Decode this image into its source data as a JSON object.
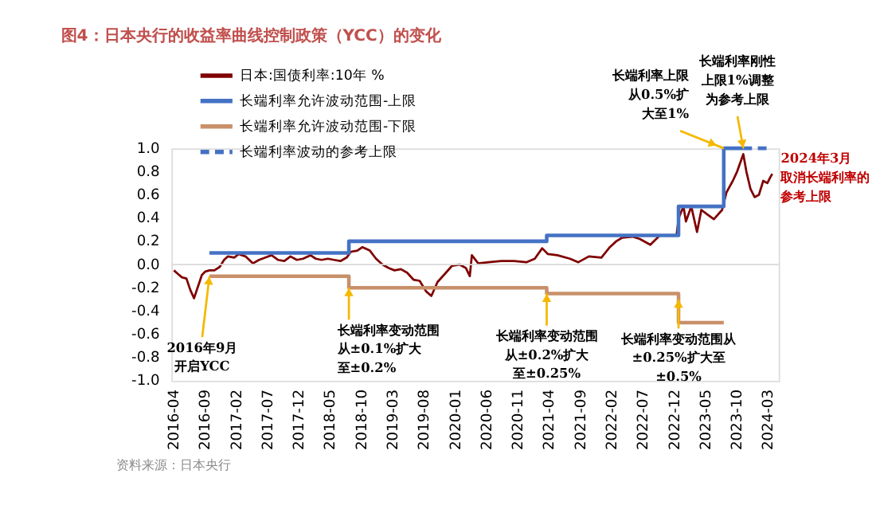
{
  "chart_data": {
    "type": "line",
    "title": "图4：日本央行的收益率曲线控制政策（YCC）的变化",
    "xlim": [
      "2016-03-20",
      "2024-04-20"
    ],
    "xticks": [
      "2016-04",
      "2016-09",
      "2017-02",
      "2017-07",
      "2017-12",
      "2018-05",
      "2018-10",
      "2019-03",
      "2019-08",
      "2020-01",
      "2020-06",
      "2020-11",
      "2021-04",
      "2021-09",
      "2022-02",
      "2022-07",
      "2022-12",
      "2023-05",
      "2023-10",
      "2024-03"
    ],
    "ylim": [
      -1.0,
      1.0
    ],
    "yticks": [
      {
        "value": -1.0,
        "label": "-1.0"
      },
      {
        "value": -0.8,
        "label": "-0.8"
      },
      {
        "value": -0.6,
        "label": "-0.6"
      },
      {
        "value": -0.4,
        "label": "-0.4"
      },
      {
        "value": -0.2,
        "label": "-0.2"
      },
      {
        "value": 0,
        "label": "0.0"
      },
      {
        "value": 0.2,
        "label": "0.2"
      },
      {
        "value": 0.4,
        "label": "0.4"
      },
      {
        "value": 0.6,
        "label": "0.6"
      },
      {
        "value": 0.8,
        "label": "0.8"
      },
      {
        "value": 1.0,
        "label": "1.0"
      }
    ],
    "grid": false,
    "legend": "top left",
    "line_style": "solid",
    "marker": "none",
    "series": [
      {
        "name": "日本:国债利率:10年 %",
        "color": "#7f0000",
        "x": [
          "2016-04-01",
          "2016-04-20",
          "2016-05-10",
          "2016-06-01",
          "2016-06-20",
          "2016-07-08",
          "2016-07-27",
          "2016-08-15",
          "2016-09-01",
          "2016-09-21",
          "2016-10-15",
          "2016-11-10",
          "2016-12-01",
          "2016-12-20",
          "2017-01-20",
          "2017-02-10",
          "2017-03-15",
          "2017-04-20",
          "2017-05-20",
          "2017-06-20",
          "2017-07-20",
          "2017-08-20",
          "2017-09-20",
          "2017-10-20",
          "2017-11-20",
          "2017-12-20",
          "2018-01-25",
          "2018-02-20",
          "2018-03-20",
          "2018-04-20",
          "2018-05-20",
          "2018-06-20",
          "2018-07-20",
          "2018-08-10",
          "2018-09-10",
          "2018-10-05",
          "2018-11-10",
          "2018-12-10",
          "2019-01-10",
          "2019-02-10",
          "2019-03-10",
          "2019-04-10",
          "2019-05-10",
          "2019-06-10",
          "2019-07-10",
          "2019-08-10",
          "2019-09-05",
          "2019-10-05",
          "2019-11-10",
          "2019-12-15",
          "2020-01-20",
          "2020-02-20",
          "2020-03-10",
          "2020-03-20",
          "2020-04-20",
          "2020-06-10",
          "2020-08-10",
          "2020-10-10",
          "2020-12-10",
          "2021-01-20",
          "2021-02-25",
          "2021-03-25",
          "2021-05-10",
          "2021-07-10",
          "2021-08-20",
          "2021-10-10",
          "2021-12-10",
          "2022-01-20",
          "2022-02-20",
          "2022-03-20",
          "2022-05-10",
          "2022-06-15",
          "2022-08-05",
          "2022-09-20",
          "2022-11-10",
          "2022-12-10",
          "2022-12-21",
          "2023-01-13",
          "2023-01-25",
          "2023-02-20",
          "2023-03-20",
          "2023-04-10",
          "2023-05-10",
          "2023-06-10",
          "2023-07-20",
          "2023-08-10",
          "2023-09-10",
          "2023-10-01",
          "2023-10-31",
          "2023-11-15",
          "2023-12-05",
          "2023-12-25",
          "2024-01-15",
          "2024-02-05",
          "2024-02-25",
          "2024-03-10",
          "2024-03-20"
        ],
        "values": [
          -0.05,
          -0.08,
          -0.11,
          -0.12,
          -0.22,
          -0.29,
          -0.19,
          -0.09,
          -0.06,
          -0.05,
          -0.05,
          -0.02,
          0.04,
          0.07,
          0.06,
          0.09,
          0.07,
          0.01,
          0.04,
          0.06,
          0.08,
          0.04,
          0.03,
          0.07,
          0.04,
          0.05,
          0.08,
          0.05,
          0.04,
          0.05,
          0.04,
          0.03,
          0.06,
          0.11,
          0.12,
          0.15,
          0.12,
          0.05,
          0.0,
          -0.03,
          -0.05,
          -0.04,
          -0.07,
          -0.13,
          -0.14,
          -0.23,
          -0.27,
          -0.15,
          -0.08,
          -0.01,
          0.0,
          -0.03,
          -0.1,
          0.08,
          0.01,
          0.02,
          0.03,
          0.03,
          0.02,
          0.05,
          0.14,
          0.09,
          0.08,
          0.05,
          0.02,
          0.07,
          0.06,
          0.15,
          0.2,
          0.23,
          0.24,
          0.22,
          0.17,
          0.25,
          0.25,
          0.25,
          0.4,
          0.5,
          0.37,
          0.5,
          0.28,
          0.47,
          0.43,
          0.39,
          0.47,
          0.62,
          0.72,
          0.8,
          0.95,
          0.8,
          0.65,
          0.58,
          0.6,
          0.72,
          0.7,
          0.75,
          0.78
        ]
      },
      {
        "name": "长端利率允许波动范围-上限",
        "color": "#4472c4",
        "type": "step",
        "x": [
          "2016-09-21",
          "2018-07-31",
          "2021-03-19",
          "2022-12-20",
          "2023-07-28",
          "2023-10-31"
        ],
        "values": [
          0.1,
          0.2,
          0.25,
          0.5,
          1.0,
          1.0
        ]
      },
      {
        "name": "长端利率允许波动范围-下限",
        "color": "#c8906a",
        "type": "step",
        "x": [
          "2016-09-21",
          "2018-07-31",
          "2021-03-19",
          "2022-12-20",
          "2023-07-28"
        ],
        "values": [
          -0.1,
          -0.2,
          -0.25,
          -0.5,
          -0.5
        ]
      },
      {
        "name": "长端利率波动的参考上限",
        "color": "#4472c4",
        "line_style": "dashed",
        "x": [
          "2023-10-31",
          "2024-03-19"
        ],
        "values": [
          1.0,
          1.0
        ]
      }
    ],
    "ref_lines": [
      {
        "axis": "y",
        "value": 0,
        "color": "#d9d9d9"
      }
    ],
    "annotations": [
      {
        "text": "2016年9月开启YCC",
        "x": "2016-09-21",
        "y": -0.1
      },
      {
        "text": "长端利率变动范围从±0.1%扩大至±0.2%",
        "x": "2018-07-31",
        "y": -0.2
      },
      {
        "text": "长端利率变动范围从±0.2%扩大至±0.25%",
        "x": "2021-03-19",
        "y": -0.25
      },
      {
        "text": "长端利率变动范围从±0.25%扩大至±0.5%",
        "x": "2022-12-20",
        "y": -0.3
      },
      {
        "text": "长端利率上限从0.5%扩大至1%",
        "x": "2023-07-28",
        "y": 1.0
      },
      {
        "text": "长端利率刚性上限1%调整为参考上限",
        "x": "2023-10-31",
        "y": 1.0
      },
      {
        "text": "2024年3月取消长端利率的参考上限",
        "x": "2024-03-19",
        "y": 1.0
      },
      "资料来源：日本央行"
    ]
  }
}
